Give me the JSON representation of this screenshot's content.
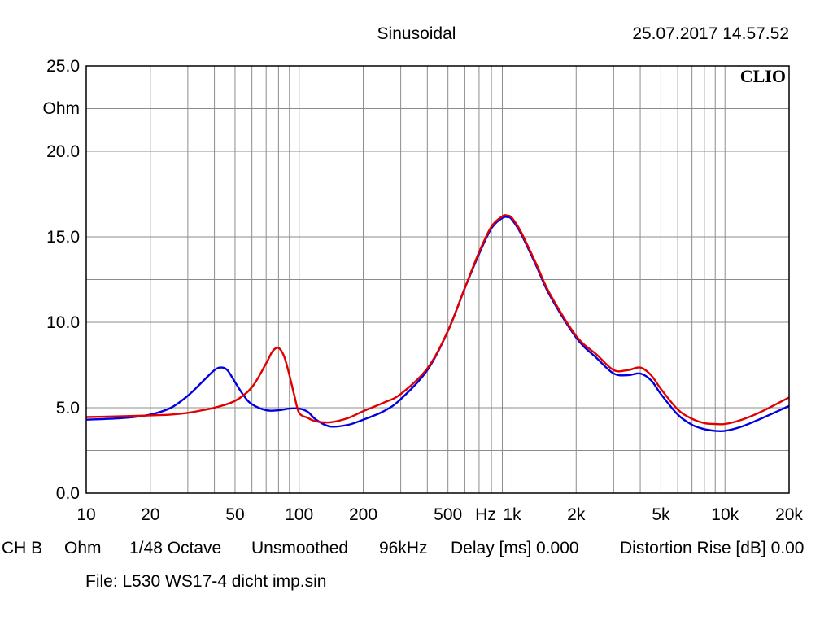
{
  "header": {
    "mode": "Sinusoidal",
    "timestamp": "25.07.2017 14.57.52",
    "brand": "CLIO"
  },
  "footer": {
    "channel": "CH B",
    "unit": "Ohm",
    "resolution": "1/48 Octave",
    "smoothing": "Unsmoothed",
    "sample_rate": "96kHz",
    "delay": "Delay [ms] 0.000",
    "distortion": "Distortion Rise [dB] 0.00",
    "file": "File: L530 WS17-4 dicht imp.sin"
  },
  "chart_data": {
    "type": "line",
    "title": "Sinusoidal",
    "xlabel": "Hz",
    "ylabel": "Ohm",
    "xscale": "log",
    "xlim": [
      10,
      20000
    ],
    "ylim": [
      0,
      25
    ],
    "grid": true,
    "x_ticks": [
      10,
      20,
      50,
      100,
      200,
      500,
      1000,
      2000,
      5000,
      10000,
      20000
    ],
    "x_tick_labels": [
      "10",
      "20",
      "50",
      "100",
      "200",
      "500",
      "1k",
      "2k",
      "5k",
      "10k",
      "20k"
    ],
    "y_ticks": [
      0,
      5,
      10,
      15,
      20,
      25
    ],
    "y_tick_labels": [
      "0.0",
      "5.0",
      "10.0",
      "15.0",
      "20.0",
      "25.0"
    ],
    "series": [
      {
        "color": "#0000e0",
        "x": [
          10,
          15,
          20,
          25,
          30,
          35,
          40,
          43,
          46,
          50,
          55,
          60,
          70,
          80,
          90,
          100,
          110,
          120,
          140,
          170,
          200,
          250,
          300,
          400,
          500,
          600,
          700,
          800,
          900,
          960,
          1000,
          1100,
          1300,
          1500,
          2000,
          2500,
          3000,
          3500,
          4000,
          4500,
          5000,
          6000,
          7000,
          8000,
          9000,
          10000,
          12000,
          15000,
          20000
        ],
        "y": [
          4.3,
          4.4,
          4.6,
          5.0,
          5.7,
          6.5,
          7.2,
          7.35,
          7.2,
          6.5,
          5.7,
          5.2,
          4.85,
          4.85,
          4.95,
          4.95,
          4.75,
          4.3,
          3.9,
          4.0,
          4.3,
          4.8,
          5.5,
          7.2,
          9.5,
          12.0,
          14.0,
          15.5,
          16.1,
          16.15,
          16.0,
          15.2,
          13.3,
          11.6,
          9.1,
          7.9,
          7.0,
          6.9,
          7.0,
          6.6,
          5.8,
          4.6,
          4.0,
          3.75,
          3.65,
          3.65,
          3.9,
          4.4,
          5.1
        ]
      },
      {
        "color": "#e00000",
        "x": [
          10,
          15,
          20,
          25,
          30,
          35,
          40,
          50,
          60,
          70,
          75,
          80,
          85,
          90,
          95,
          100,
          110,
          120,
          140,
          170,
          200,
          250,
          300,
          400,
          500,
          600,
          700,
          800,
          900,
          950,
          1000,
          1100,
          1300,
          1500,
          2000,
          2500,
          3000,
          3500,
          4000,
          4500,
          5000,
          6000,
          7000,
          8000,
          9000,
          10000,
          12000,
          15000,
          20000
        ],
        "y": [
          4.45,
          4.5,
          4.55,
          4.6,
          4.7,
          4.85,
          5.0,
          5.4,
          6.2,
          7.6,
          8.3,
          8.5,
          8.0,
          6.9,
          5.7,
          4.7,
          4.4,
          4.2,
          4.15,
          4.4,
          4.8,
          5.3,
          5.8,
          7.3,
          9.5,
          12.0,
          14.1,
          15.6,
          16.2,
          16.25,
          16.1,
          15.3,
          13.4,
          11.7,
          9.2,
          8.1,
          7.2,
          7.2,
          7.35,
          6.9,
          6.1,
          4.9,
          4.35,
          4.1,
          4.05,
          4.05,
          4.3,
          4.8,
          5.6
        ]
      }
    ]
  }
}
